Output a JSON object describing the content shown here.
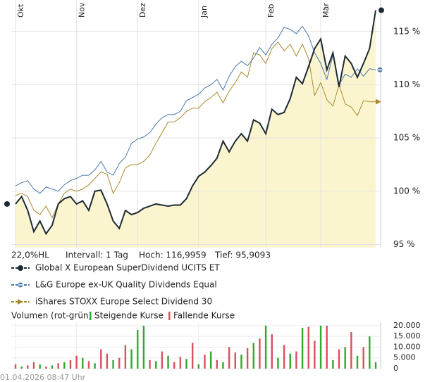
{
  "chart_data": {
    "type": "line",
    "info_range": "22,0%HL",
    "info_interval": "Intervall: 1 Tag",
    "info_high": "Hoch: 116,9959",
    "info_low": "Tief: 95,9093",
    "timestamp": "01.04.2026 08:47 Uhr",
    "categories": [
      "Okt",
      null,
      null,
      null,
      null,
      null,
      null,
      null,
      null,
      null,
      "Nov",
      null,
      null,
      null,
      null,
      null,
      null,
      null,
      null,
      null,
      "Dez",
      null,
      null,
      null,
      null,
      null,
      null,
      null,
      null,
      null,
      "Jan",
      null,
      null,
      null,
      null,
      null,
      null,
      null,
      null,
      null,
      null,
      "Feb",
      null,
      null,
      null,
      null,
      null,
      null,
      null,
      null,
      "Mär",
      null,
      null,
      null,
      null,
      null,
      null,
      null,
      null,
      null
    ],
    "series": [
      {
        "name": "Global X European SuperDividend UCITS ET",
        "color": "#1c2a33",
        "marker": "circle",
        "values": [
          98.8,
          99.5,
          98.2,
          96.2,
          97.2,
          96,
          96.8,
          98.8,
          99.3,
          99.5,
          98.8,
          99.1,
          98.2,
          100,
          100.1,
          98.8,
          97.2,
          96.5,
          98.2,
          97.8,
          98,
          98.4,
          98.6,
          98.8,
          98.7,
          98.6,
          98.7,
          98.7,
          99.3,
          100.5,
          101.4,
          101.8,
          102.4,
          103.1,
          104.7,
          103.7,
          104.7,
          105.4,
          104.7,
          106.7,
          106.4,
          105.4,
          107.7,
          107.2,
          107.4,
          108.7,
          110.7,
          110.1,
          111.7,
          113.4,
          114.3,
          111.4,
          113,
          109.8,
          112.7,
          112,
          110.7,
          112,
          113.4,
          117
        ]
      },
      {
        "name": "L&G Europe ex-UK Quality Dividends Equal",
        "color": "#4a78a8",
        "marker": "dash-circle",
        "values": [
          100.5,
          100.8,
          101,
          100.2,
          99.8,
          100.4,
          100.2,
          100,
          100.6,
          101,
          101.2,
          101.5,
          101.5,
          102,
          102.8,
          101.8,
          101.5,
          102.6,
          103.2,
          104.5,
          104.9,
          105.1,
          105.5,
          106.3,
          106.9,
          107.2,
          107.2,
          107.5,
          108.5,
          108.8,
          109.1,
          109.7,
          110,
          110.5,
          109.5,
          110.8,
          111.7,
          112.2,
          111.8,
          112.5,
          113.5,
          112.8,
          113.8,
          114.4,
          115.4,
          115.2,
          114.8,
          115.5,
          114.6,
          113,
          112,
          110.5,
          112.8,
          110,
          111,
          110.7,
          111.5,
          110.8,
          111.5,
          111.4
        ]
      },
      {
        "name": "iShares STOXX Europe Select Dividend 30",
        "color": "#a88a2e",
        "marker": "triangle",
        "values": [
          99.6,
          99.8,
          99.5,
          98.2,
          97.8,
          98.6,
          97.5,
          98.8,
          99.8,
          100.2,
          100,
          100.2,
          100.6,
          101.2,
          101.8,
          101.6,
          99.8,
          100.8,
          102.2,
          102.5,
          102.5,
          102.8,
          103.4,
          104.5,
          105.5,
          106.5,
          106.5,
          106.9,
          107.5,
          107.8,
          107.8,
          108.4,
          108.8,
          109.3,
          108.3,
          109.4,
          110.2,
          111.2,
          110.7,
          113,
          112.8,
          112,
          113.4,
          114,
          113.2,
          113.8,
          112.7,
          113.8,
          112.5,
          109,
          110.2,
          108.6,
          108,
          110,
          108.2,
          107.9,
          107.1,
          108.5,
          108.4,
          108.4
        ]
      }
    ],
    "area_color": "#fbf5cf",
    "ylim": [
      94.7,
      117.3
    ],
    "yticks": [
      {
        "value": 95,
        "label": "95 %"
      },
      {
        "value": 100,
        "label": "100 %"
      },
      {
        "value": 105,
        "label": "105 %"
      },
      {
        "value": 110,
        "label": "110 %"
      },
      {
        "value": 115,
        "label": "115 %"
      }
    ],
    "grid": true,
    "volume": {
      "title": "Volumen (rot-grün)",
      "ylim": [
        0,
        21600
      ],
      "yticks": [
        0,
        {
          "value": 5000,
          "label": "5.000"
        },
        {
          "value": 10000,
          "label": "10.000"
        },
        {
          "value": 15000,
          "label": "15.000"
        },
        {
          "value": 20000,
          "label": "20.000"
        }
      ],
      "series": [
        {
          "name": "Steigende Kurse",
          "color": "#2eaa2e",
          "values": [
            null,
            1000,
            null,
            null,
            2000,
            null,
            1500,
            null,
            3000,
            null,
            null,
            5000,
            null,
            2500,
            null,
            null,
            4000,
            null,
            null,
            9000,
            18000,
            20000,
            null,
            3500,
            null,
            6000,
            null,
            null,
            4500,
            null,
            2000,
            null,
            8000,
            null,
            3000,
            null,
            null,
            6500,
            null,
            12000,
            null,
            20000,
            null,
            5000,
            null,
            7000,
            null,
            19000,
            null,
            null,
            20000,
            null,
            4000,
            null,
            10000,
            null,
            6000,
            null,
            15000,
            3000
          ]
        },
        {
          "name": "Fallende Kurse",
          "color": "#d9505e",
          "values": [
            2000,
            null,
            1500,
            3000,
            null,
            1000,
            null,
            2500,
            null,
            4000,
            6000,
            null,
            3500,
            null,
            9000,
            7000,
            null,
            5000,
            11000,
            null,
            null,
            null,
            4000,
            null,
            8000,
            null,
            3000,
            5500,
            null,
            12000,
            null,
            6500,
            null,
            4000,
            null,
            10000,
            7500,
            null,
            9500,
            null,
            14000,
            null,
            16000,
            null,
            11000,
            null,
            8000,
            null,
            19500,
            13000,
            null,
            20000,
            null,
            9000,
            null,
            17000,
            null,
            10000,
            null,
            null
          ]
        }
      ]
    }
  }
}
